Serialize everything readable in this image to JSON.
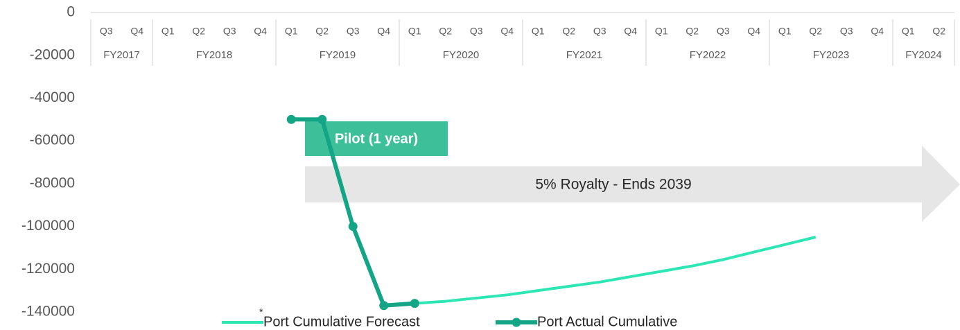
{
  "chart_data": {
    "type": "line",
    "categories": [
      "Q3",
      "Q4",
      "Q1",
      "Q2",
      "Q3",
      "Q4",
      "Q1",
      "Q2",
      "Q3",
      "Q4",
      "Q1",
      "Q2",
      "Q3",
      "Q4",
      "Q1",
      "Q2",
      "Q3",
      "Q4",
      "Q1",
      "Q2",
      "Q3",
      "Q4",
      "Q1",
      "Q2",
      "Q3",
      "Q4",
      "Q1",
      "Q2"
    ],
    "category_groups": [
      "FY2017",
      "FY2018",
      "FY2019",
      "FY2020",
      "FY2021",
      "FY2022",
      "FY2023",
      "FY2024"
    ],
    "series": [
      {
        "name": "Port Cumulative Forecast",
        "color": "#2ee6b4",
        "marker": false,
        "values": [
          null,
          null,
          null,
          null,
          null,
          null,
          null,
          null,
          null,
          -137000,
          -136000,
          -135000,
          -133500,
          -132000,
          -130000,
          -128000,
          -126000,
          -123500,
          -121000,
          -118500,
          -115500,
          -112000,
          -108500,
          -105000,
          null,
          null,
          null,
          null
        ]
      },
      {
        "name": "Port Actual Cumulative",
        "color": "#14a586",
        "marker": true,
        "values": [
          null,
          null,
          null,
          null,
          null,
          null,
          -50000,
          -50000,
          -100000,
          -137000,
          -136000,
          null,
          null,
          null,
          null,
          null,
          null,
          null,
          null,
          null,
          null,
          null,
          null,
          null,
          null,
          null,
          null,
          null
        ]
      }
    ],
    "ylim": [
      -140000,
      0
    ],
    "yticks": [
      0,
      -20000,
      -40000,
      -60000,
      -80000,
      -100000,
      -120000,
      -140000
    ],
    "annotations": [
      "Pilot (1 year)",
      "5% Royalty - Ends 2039"
    ],
    "legend_mark": "*"
  }
}
